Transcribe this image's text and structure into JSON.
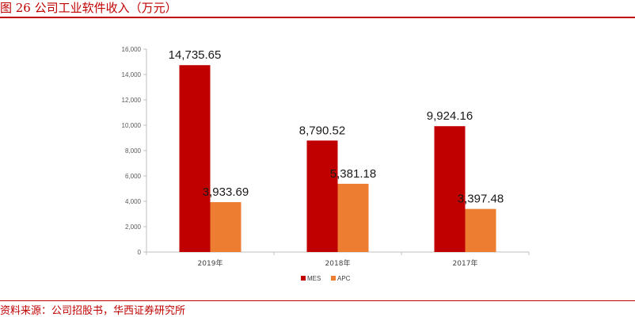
{
  "caption": "图 26 公司工业软件收入（万元）",
  "source": "资料来源：公司招股书，华西证券研究所",
  "colors": {
    "MES": "#c00000",
    "APC": "#ed7d31"
  },
  "chart_data": {
    "type": "bar",
    "title": "",
    "categories": [
      "2019年",
      "2018年",
      "2017年"
    ],
    "series": [
      {
        "name": "MES",
        "values": [
          14735.65,
          8790.52,
          9924.16
        ],
        "labels": [
          "14,735.65",
          "8,790.52",
          "9,924.16"
        ]
      },
      {
        "name": "APC",
        "values": [
          3933.69,
          5381.18,
          3397.48
        ],
        "labels": [
          "3,933.69",
          "5,381.18",
          "3,397.48"
        ]
      }
    ],
    "yticks": [
      "0",
      "2,000",
      "4,000",
      "6,000",
      "8,000",
      "10,000",
      "12,000",
      "14,000",
      "16,000"
    ],
    "ylim": [
      0,
      16000
    ],
    "grid": false,
    "legend": "bottom"
  }
}
